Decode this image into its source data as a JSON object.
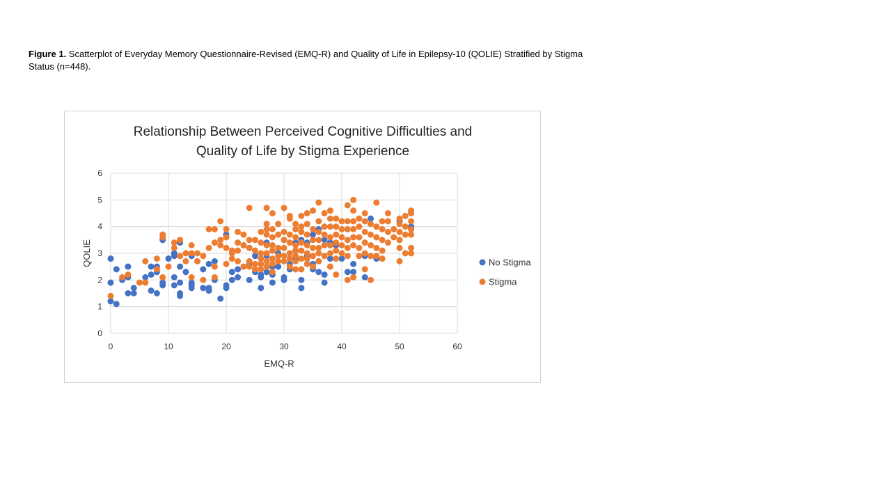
{
  "caption": {
    "label": "Figure 1.",
    "text": " Scatterplot of Everyday Memory  Questionnaire-Revised (EMQ-R) and Quality of Life in Epilepsy-10 (QOLIE) Stratified by Stigma Status (n=448)."
  },
  "chart_data": {
    "type": "scatter",
    "title_line1": "Relationship Between Perceived Cognitive Difficulties and",
    "title_line2": "Quality of Life by Stigma Experience",
    "xlabel": "EMQ-R",
    "ylabel": "QOLIE",
    "xlim": [
      0,
      60
    ],
    "ylim": [
      0,
      6
    ],
    "xticks": [
      0,
      10,
      20,
      30,
      40,
      50,
      60
    ],
    "yticks": [
      0,
      1,
      2,
      3,
      4,
      5,
      6
    ],
    "grid": true,
    "legend_position": "right",
    "series": [
      {
        "name": "No Stigma",
        "color": "#4472C4",
        "points": [
          [
            0,
            2.8
          ],
          [
            0,
            1.9
          ],
          [
            0,
            1.2
          ],
          [
            1,
            1.1
          ],
          [
            1,
            2.4
          ],
          [
            2,
            2.0
          ],
          [
            3,
            2.5
          ],
          [
            3,
            2.1
          ],
          [
            3,
            1.5
          ],
          [
            4,
            1.7
          ],
          [
            4,
            1.5
          ],
          [
            6,
            2.1
          ],
          [
            7,
            2.5
          ],
          [
            7,
            2.2
          ],
          [
            7,
            1.6
          ],
          [
            8,
            2.5
          ],
          [
            8,
            2.3
          ],
          [
            8,
            1.5
          ],
          [
            9,
            3.5
          ],
          [
            9,
            1.9
          ],
          [
            9,
            1.8
          ],
          [
            10,
            2.8
          ],
          [
            11,
            3.0
          ],
          [
            11,
            2.9
          ],
          [
            11,
            2.1
          ],
          [
            11,
            1.8
          ],
          [
            12,
            3.4
          ],
          [
            12,
            2.5
          ],
          [
            12,
            1.9
          ],
          [
            12,
            1.5
          ],
          [
            12,
            1.4
          ],
          [
            13,
            2.3
          ],
          [
            14,
            2.9
          ],
          [
            14,
            1.9
          ],
          [
            14,
            1.8
          ],
          [
            14,
            1.7
          ],
          [
            15,
            2.7
          ],
          [
            16,
            2.4
          ],
          [
            16,
            1.7
          ],
          [
            17,
            2.6
          ],
          [
            17,
            1.7
          ],
          [
            17,
            1.6
          ],
          [
            18,
            2.7
          ],
          [
            18,
            2.0
          ],
          [
            19,
            1.3
          ],
          [
            20,
            1.8
          ],
          [
            20,
            1.7
          ],
          [
            20,
            3.7
          ],
          [
            21,
            2.3
          ],
          [
            21,
            2.0
          ],
          [
            22,
            2.4
          ],
          [
            22,
            2.1
          ],
          [
            23,
            3.3
          ],
          [
            24,
            3.2
          ],
          [
            24,
            2.6
          ],
          [
            24,
            2.0
          ],
          [
            25,
            2.9
          ],
          [
            25,
            2.3
          ],
          [
            26,
            2.2
          ],
          [
            26,
            2.1
          ],
          [
            26,
            1.7
          ],
          [
            27,
            3.4
          ],
          [
            27,
            2.9
          ],
          [
            27,
            2.3
          ],
          [
            28,
            2.5
          ],
          [
            28,
            2.2
          ],
          [
            28,
            1.9
          ],
          [
            29,
            3.0
          ],
          [
            29,
            2.5
          ],
          [
            30,
            3.5
          ],
          [
            30,
            2.1
          ],
          [
            30,
            2.0
          ],
          [
            31,
            2.6
          ],
          [
            31,
            2.4
          ],
          [
            32,
            3.4
          ],
          [
            32,
            3.1
          ],
          [
            32,
            2.8
          ],
          [
            33,
            3.5
          ],
          [
            33,
            2.0
          ],
          [
            33,
            1.7
          ],
          [
            34,
            3.4
          ],
          [
            34,
            2.9
          ],
          [
            35,
            3.7
          ],
          [
            35,
            2.6
          ],
          [
            35,
            2.4
          ],
          [
            36,
            3.9
          ],
          [
            36,
            2.7
          ],
          [
            36,
            2.3
          ],
          [
            37,
            3.5
          ],
          [
            37,
            2.2
          ],
          [
            37,
            1.9
          ],
          [
            38,
            3.4
          ],
          [
            38,
            2.8
          ],
          [
            39,
            3.3
          ],
          [
            40,
            2.8
          ],
          [
            41,
            2.3
          ],
          [
            42,
            2.6
          ],
          [
            42,
            2.3
          ],
          [
            44,
            2.9
          ],
          [
            44,
            2.1
          ],
          [
            45,
            4.3
          ],
          [
            46,
            2.8
          ],
          [
            50,
            4.2
          ],
          [
            52,
            4.0
          ],
          [
            52,
            3.9
          ]
        ]
      },
      {
        "name": "Stigma",
        "color": "#ED7D31",
        "points": [
          [
            0,
            1.4
          ],
          [
            2,
            2.1
          ],
          [
            3,
            2.2
          ],
          [
            5,
            1.9
          ],
          [
            6,
            1.9
          ],
          [
            6,
            2.7
          ],
          [
            8,
            2.8
          ],
          [
            8,
            2.4
          ],
          [
            9,
            3.7
          ],
          [
            9,
            3.6
          ],
          [
            9,
            2.1
          ],
          [
            10,
            2.5
          ],
          [
            11,
            3.4
          ],
          [
            11,
            3.2
          ],
          [
            12,
            3.5
          ],
          [
            12,
            2.9
          ],
          [
            13,
            3.0
          ],
          [
            13,
            2.7
          ],
          [
            14,
            3.3
          ],
          [
            14,
            3.0
          ],
          [
            14,
            2.1
          ],
          [
            15,
            3.0
          ],
          [
            15,
            2.7
          ],
          [
            16,
            2.9
          ],
          [
            16,
            2.0
          ],
          [
            17,
            3.9
          ],
          [
            17,
            3.2
          ],
          [
            18,
            3.9
          ],
          [
            18,
            3.4
          ],
          [
            18,
            2.5
          ],
          [
            18,
            2.1
          ],
          [
            19,
            4.2
          ],
          [
            19,
            3.5
          ],
          [
            19,
            3.3
          ],
          [
            20,
            3.9
          ],
          [
            20,
            3.6
          ],
          [
            20,
            3.2
          ],
          [
            20,
            2.6
          ],
          [
            21,
            3.1
          ],
          [
            21,
            3.0
          ],
          [
            21,
            2.8
          ],
          [
            22,
            3.8
          ],
          [
            22,
            3.4
          ],
          [
            22,
            3.1
          ],
          [
            22,
            2.7
          ],
          [
            23,
            3.7
          ],
          [
            23,
            3.3
          ],
          [
            23,
            2.5
          ],
          [
            24,
            4.7
          ],
          [
            24,
            3.5
          ],
          [
            24,
            3.2
          ],
          [
            24,
            2.7
          ],
          [
            24,
            2.5
          ],
          [
            25,
            3.5
          ],
          [
            25,
            3.1
          ],
          [
            25,
            2.6
          ],
          [
            25,
            2.4
          ],
          [
            26,
            3.8
          ],
          [
            26,
            3.4
          ],
          [
            26,
            3.0
          ],
          [
            26,
            2.8
          ],
          [
            26,
            2.6
          ],
          [
            26,
            2.4
          ],
          [
            27,
            4.7
          ],
          [
            27,
            4.1
          ],
          [
            27,
            3.9
          ],
          [
            27,
            3.7
          ],
          [
            27,
            3.3
          ],
          [
            27,
            3.0
          ],
          [
            27,
            2.7
          ],
          [
            27,
            2.5
          ],
          [
            28,
            4.5
          ],
          [
            28,
            3.9
          ],
          [
            28,
            3.6
          ],
          [
            28,
            3.3
          ],
          [
            28,
            3.1
          ],
          [
            28,
            2.8
          ],
          [
            28,
            2.6
          ],
          [
            28,
            2.3
          ],
          [
            29,
            4.1
          ],
          [
            29,
            3.7
          ],
          [
            29,
            3.2
          ],
          [
            29,
            2.9
          ],
          [
            29,
            2.7
          ],
          [
            30,
            4.7
          ],
          [
            30,
            3.8
          ],
          [
            30,
            3.5
          ],
          [
            30,
            3.2
          ],
          [
            30,
            2.9
          ],
          [
            30,
            2.7
          ],
          [
            31,
            4.4
          ],
          [
            31,
            4.3
          ],
          [
            31,
            3.7
          ],
          [
            31,
            3.4
          ],
          [
            31,
            3.0
          ],
          [
            31,
            2.8
          ],
          [
            31,
            2.5
          ],
          [
            32,
            4.1
          ],
          [
            32,
            3.9
          ],
          [
            32,
            3.6
          ],
          [
            32,
            3.3
          ],
          [
            32,
            3.1
          ],
          [
            32,
            2.9
          ],
          [
            32,
            2.7
          ],
          [
            32,
            2.4
          ],
          [
            33,
            4.4
          ],
          [
            33,
            4.0
          ],
          [
            33,
            3.8
          ],
          [
            33,
            3.4
          ],
          [
            33,
            3.1
          ],
          [
            33,
            2.8
          ],
          [
            33,
            2.4
          ],
          [
            34,
            4.5
          ],
          [
            34,
            4.1
          ],
          [
            34,
            3.7
          ],
          [
            34,
            3.3
          ],
          [
            34,
            3.0
          ],
          [
            34,
            2.8
          ],
          [
            34,
            2.6
          ],
          [
            35,
            4.6
          ],
          [
            35,
            3.9
          ],
          [
            35,
            3.5
          ],
          [
            35,
            3.2
          ],
          [
            35,
            2.9
          ],
          [
            35,
            2.5
          ],
          [
            36,
            4.9
          ],
          [
            36,
            4.2
          ],
          [
            36,
            3.8
          ],
          [
            36,
            3.5
          ],
          [
            36,
            3.2
          ],
          [
            36,
            3.0
          ],
          [
            36,
            2.7
          ],
          [
            37,
            4.5
          ],
          [
            37,
            4.0
          ],
          [
            37,
            3.7
          ],
          [
            37,
            3.3
          ],
          [
            37,
            2.9
          ],
          [
            38,
            4.6
          ],
          [
            38,
            4.3
          ],
          [
            38,
            4.0
          ],
          [
            38,
            3.6
          ],
          [
            38,
            3.3
          ],
          [
            38,
            3.0
          ],
          [
            38,
            2.5
          ],
          [
            39,
            4.3
          ],
          [
            39,
            4.0
          ],
          [
            39,
            3.7
          ],
          [
            39,
            3.4
          ],
          [
            39,
            3.1
          ],
          [
            39,
            2.8
          ],
          [
            39,
            2.2
          ],
          [
            40,
            4.2
          ],
          [
            40,
            3.9
          ],
          [
            40,
            3.6
          ],
          [
            40,
            3.3
          ],
          [
            40,
            3.0
          ],
          [
            41,
            4.8
          ],
          [
            41,
            4.2
          ],
          [
            41,
            3.9
          ],
          [
            41,
            3.5
          ],
          [
            41,
            3.2
          ],
          [
            41,
            2.9
          ],
          [
            41,
            2.0
          ],
          [
            42,
            5.0
          ],
          [
            42,
            4.6
          ],
          [
            42,
            4.2
          ],
          [
            42,
            3.9
          ],
          [
            42,
            3.6
          ],
          [
            42,
            3.3
          ],
          [
            42,
            2.1
          ],
          [
            43,
            4.3
          ],
          [
            43,
            4.0
          ],
          [
            43,
            3.6
          ],
          [
            43,
            3.2
          ],
          [
            43,
            2.9
          ],
          [
            44,
            4.5
          ],
          [
            44,
            4.2
          ],
          [
            44,
            3.8
          ],
          [
            44,
            3.4
          ],
          [
            44,
            3.0
          ],
          [
            44,
            2.4
          ],
          [
            45,
            4.1
          ],
          [
            45,
            3.7
          ],
          [
            45,
            3.3
          ],
          [
            45,
            2.9
          ],
          [
            45,
            2.0
          ],
          [
            46,
            4.9
          ],
          [
            46,
            4.0
          ],
          [
            46,
            3.6
          ],
          [
            46,
            3.2
          ],
          [
            46,
            2.9
          ],
          [
            47,
            4.2
          ],
          [
            47,
            3.9
          ],
          [
            47,
            3.5
          ],
          [
            47,
            3.1
          ],
          [
            47,
            2.8
          ],
          [
            48,
            4.5
          ],
          [
            48,
            4.2
          ],
          [
            48,
            3.8
          ],
          [
            48,
            3.4
          ],
          [
            49,
            3.9
          ],
          [
            49,
            3.6
          ],
          [
            50,
            4.3
          ],
          [
            50,
            4.1
          ],
          [
            50,
            3.8
          ],
          [
            50,
            3.5
          ],
          [
            50,
            3.2
          ],
          [
            50,
            2.7
          ],
          [
            51,
            4.4
          ],
          [
            51,
            4.0
          ],
          [
            51,
            3.7
          ],
          [
            51,
            3.0
          ],
          [
            52,
            4.6
          ],
          [
            52,
            4.5
          ],
          [
            52,
            4.2
          ],
          [
            52,
            3.9
          ],
          [
            52,
            3.7
          ],
          [
            52,
            3.2
          ],
          [
            52,
            3.0
          ]
        ]
      }
    ]
  }
}
